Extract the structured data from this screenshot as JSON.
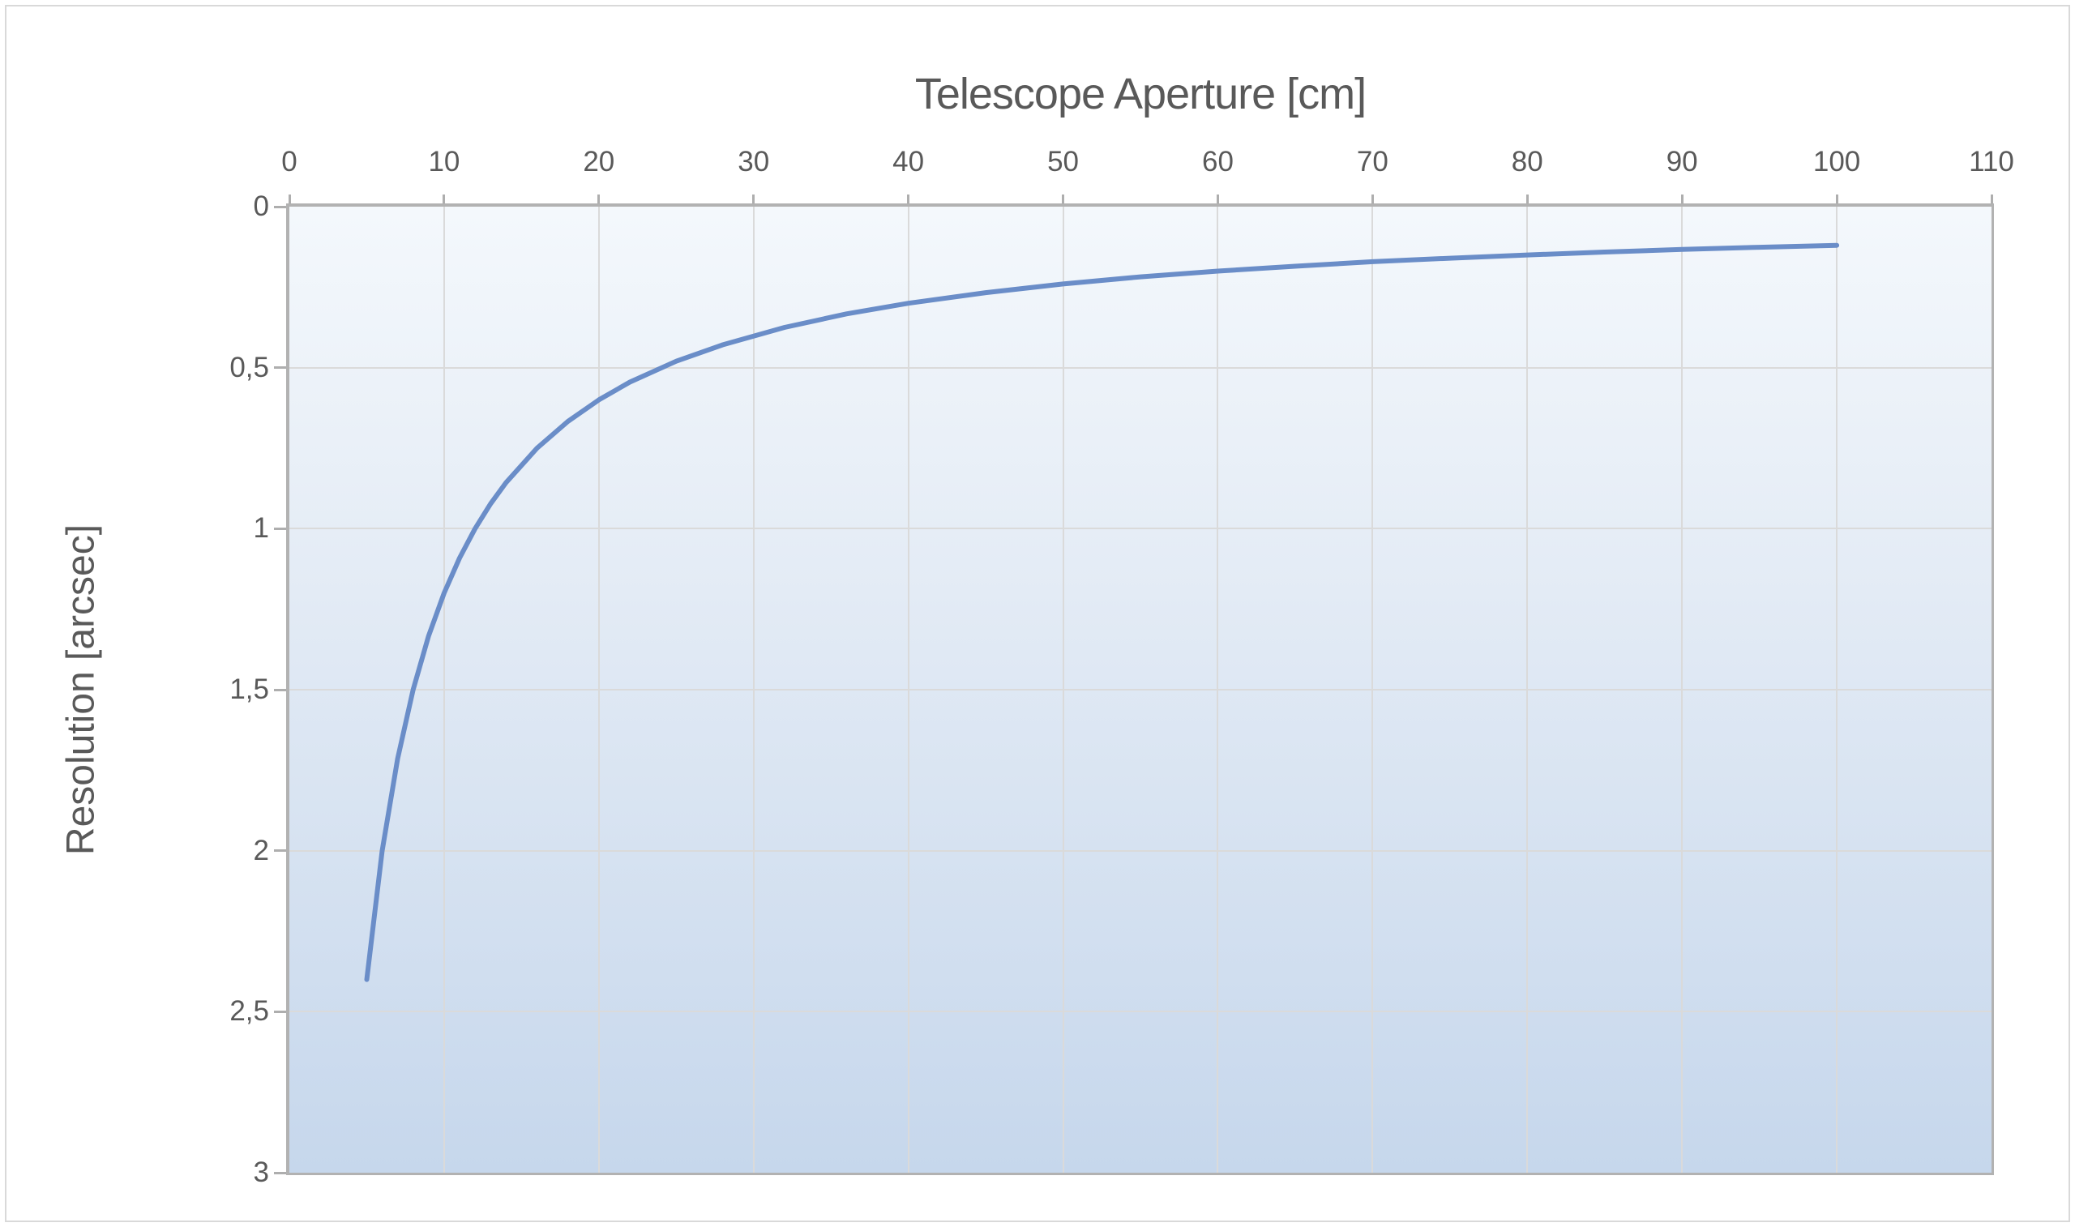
{
  "colors": {
    "line": "#6A8DC8",
    "text": "#595959",
    "axis_line": "#B2B2B2",
    "gridline": "#DADADA",
    "plot_bg_top": "#F4F8FC",
    "plot_bg_bottom": "#C6D7EC",
    "canvas_border": "#D9D9D9",
    "canvas_bg": "#FFFFFF"
  },
  "chart_data": {
    "type": "line",
    "x_label": "Telescope Aperture [cm]",
    "y_label": "Resolution [arcsec]",
    "x_axis_position": "top",
    "y_axis_inverted": true,
    "x_range": [
      0,
      110
    ],
    "y_range": [
      0,
      3
    ],
    "x_tick_labels": [
      "0",
      "10",
      "20",
      "30",
      "40",
      "50",
      "60",
      "70",
      "80",
      "90",
      "100",
      "110"
    ],
    "y_tick_labels": [
      "0",
      "0,5",
      "1",
      "1,5",
      "2",
      "2,5",
      "3"
    ],
    "y_tick_values": [
      0,
      0.5,
      1,
      1.5,
      2,
      2.5,
      3
    ],
    "grid": true,
    "legend": "none",
    "markers": "none",
    "series": [
      {
        "name": "resolution_curve",
        "x": [
          5,
          6,
          7,
          8,
          9,
          10,
          11,
          12,
          13,
          14,
          16,
          18,
          20,
          22,
          25,
          28,
          32,
          36,
          40,
          45,
          50,
          55,
          60,
          65,
          70,
          75,
          80,
          85,
          90,
          95,
          100
        ],
        "y": [
          2.4,
          2.0,
          1.714,
          1.5,
          1.333,
          1.2,
          1.091,
          1.0,
          0.923,
          0.857,
          0.75,
          0.667,
          0.6,
          0.545,
          0.48,
          0.429,
          0.375,
          0.333,
          0.3,
          0.267,
          0.24,
          0.218,
          0.2,
          0.185,
          0.171,
          0.16,
          0.15,
          0.141,
          0.133,
          0.126,
          0.12
        ]
      }
    ]
  }
}
